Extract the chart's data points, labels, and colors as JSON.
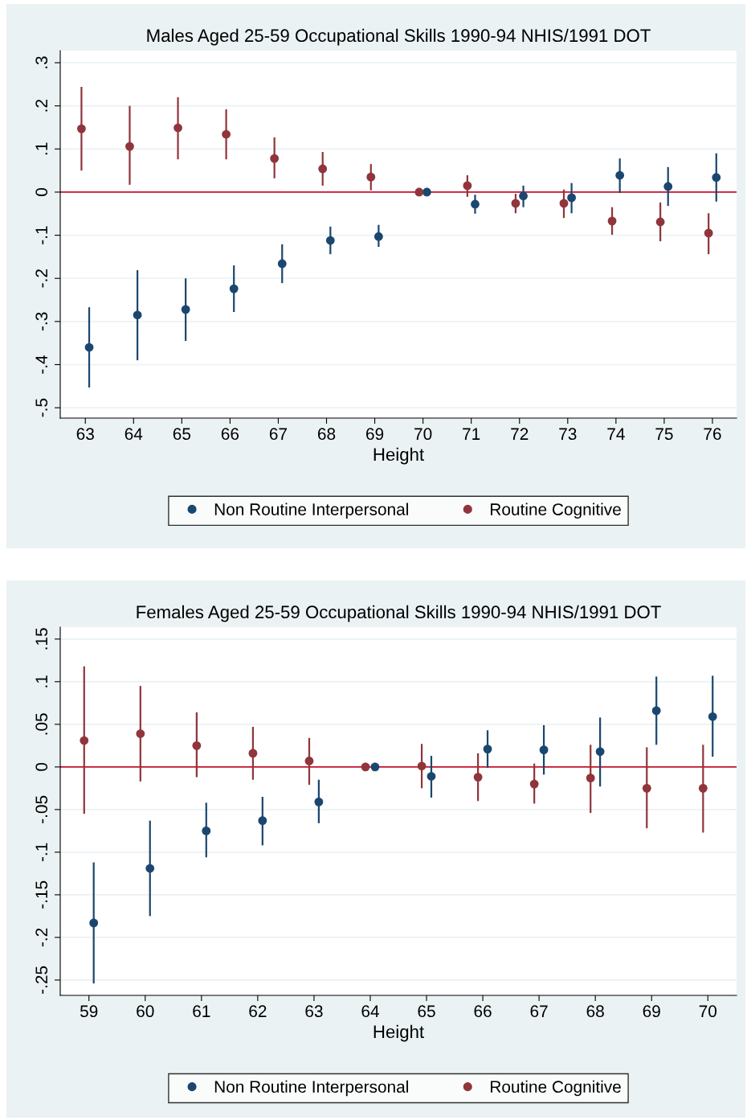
{
  "chart_data": [
    {
      "type": "scatter",
      "title": "Males Aged 25-59 Occupational Skills 1990-94 NHIS/1991 DOT",
      "xlabel": "Height",
      "xlim": [
        62.48,
        76.5
      ],
      "xticks": [
        63,
        64,
        65,
        66,
        67,
        68,
        69,
        70,
        71,
        72,
        73,
        74,
        75,
        76
      ],
      "ylim": [
        -0.524,
        0.328
      ],
      "yticks": [
        {
          "value": -0.5,
          "label": "-.5"
        },
        {
          "value": -0.4,
          "label": "-.4"
        },
        {
          "value": -0.3,
          "label": "-.3"
        },
        {
          "value": -0.2,
          "label": "-.2"
        },
        {
          "value": -0.1,
          "label": "-.1"
        },
        {
          "value": 0,
          "label": "0"
        },
        {
          "value": 0.1,
          "label": ".1"
        },
        {
          "value": 0.2,
          "label": ".2"
        },
        {
          "value": 0.3,
          "label": ".3"
        }
      ],
      "grid": "y",
      "legend": "bottom",
      "marker": "circle",
      "ref_lines": [
        {
          "axis": "y",
          "value": 0,
          "color": "#c8102e"
        }
      ],
      "series": [
        {
          "name": "Non Routine Interpersonal",
          "color": "#1a476f",
          "x": [
            63.08,
            64.08,
            65.08,
            66.08,
            67.08,
            68.08,
            69.08,
            70.08,
            71.08,
            72.08,
            73.08,
            74.08,
            75.08,
            76.08
          ],
          "values": [
            -0.36,
            -0.285,
            -0.272,
            -0.224,
            -0.166,
            -0.112,
            -0.103,
            0,
            -0.028,
            -0.009,
            -0.013,
            0.039,
            0.013,
            0.034
          ],
          "errors": [
            [
              -0.453,
              -0.267
            ],
            [
              -0.39,
              -0.181
            ],
            [
              -0.345,
              -0.2
            ],
            [
              -0.278,
              -0.17
            ],
            [
              -0.211,
              -0.121
            ],
            [
              -0.144,
              -0.08
            ],
            [
              -0.127,
              -0.076
            ],
            null,
            [
              -0.05,
              -0.006
            ],
            [
              -0.035,
              0.015
            ],
            [
              -0.049,
              0.021
            ],
            [
              -0.002,
              0.078
            ],
            [
              -0.032,
              0.058
            ],
            [
              -0.022,
              0.09
            ]
          ]
        },
        {
          "name": "Routine Cognitive",
          "color": "#90353b",
          "x": [
            62.92,
            63.92,
            64.92,
            65.92,
            66.92,
            67.92,
            68.92,
            69.92,
            70.92,
            71.92,
            72.92,
            73.92,
            74.92,
            75.92
          ],
          "values": [
            0.147,
            0.106,
            0.149,
            0.134,
            0.078,
            0.054,
            0.035,
            0,
            0.015,
            -0.026,
            -0.026,
            -0.067,
            -0.069,
            -0.095
          ],
          "errors": [
            [
              0.05,
              0.244
            ],
            [
              0.017,
              0.2
            ],
            [
              0.076,
              0.22
            ],
            [
              0.076,
              0.192
            ],
            [
              0.032,
              0.127
            ],
            [
              0.015,
              0.093
            ],
            [
              0.004,
              0.065
            ],
            null,
            [
              -0.011,
              0.039
            ],
            [
              -0.049,
              -0.004
            ],
            [
              -0.06,
              0.006
            ],
            [
              -0.099,
              -0.035
            ],
            [
              -0.114,
              -0.024
            ],
            [
              -0.144,
              -0.049
            ]
          ]
        }
      ]
    },
    {
      "type": "scatter",
      "title": "Females Aged 25-59 Occupational Skills 1990-94 NHIS/1991 DOT",
      "xlabel": "Height",
      "xlim": [
        58.49,
        70.51
      ],
      "xticks": [
        59,
        60,
        61,
        62,
        63,
        64,
        65,
        66,
        67,
        68,
        69,
        70
      ],
      "ylim": [
        -0.268,
        0.164
      ],
      "yticks": [
        {
          "value": -0.25,
          "label": "-.25"
        },
        {
          "value": -0.2,
          "label": "-.2"
        },
        {
          "value": -0.15,
          "label": "-.15"
        },
        {
          "value": -0.1,
          "label": "-.1"
        },
        {
          "value": -0.05,
          "label": "-.05"
        },
        {
          "value": 0,
          "label": "0"
        },
        {
          "value": 0.05,
          "label": ".05"
        },
        {
          "value": 0.1,
          "label": ".1"
        },
        {
          "value": 0.15,
          "label": ".15"
        }
      ],
      "grid": "y",
      "legend": "bottom",
      "marker": "circle",
      "ref_lines": [
        {
          "axis": "y",
          "value": 0,
          "color": "#c8102e"
        }
      ],
      "series": [
        {
          "name": "Non Routine Interpersonal",
          "color": "#1a476f",
          "x": [
            59.085,
            60.085,
            61.085,
            62.085,
            63.085,
            64.085,
            65.085,
            66.085,
            67.085,
            68.085,
            69.085,
            70.085
          ],
          "values": [
            -0.183,
            -0.119,
            -0.075,
            -0.063,
            -0.041,
            0,
            -0.011,
            0.021,
            0.02,
            0.018,
            0.066,
            0.059
          ],
          "errors": [
            [
              -0.254,
              -0.112
            ],
            [
              -0.175,
              -0.063
            ],
            [
              -0.106,
              -0.042
            ],
            [
              -0.092,
              -0.035
            ],
            [
              -0.066,
              -0.015
            ],
            null,
            [
              -0.036,
              0.013
            ],
            [
              -0.001,
              0.043
            ],
            [
              -0.009,
              0.049
            ],
            [
              -0.023,
              0.058
            ],
            [
              0.026,
              0.106
            ],
            [
              0.012,
              0.107
            ]
          ]
        },
        {
          "name": "Routine Cognitive",
          "color": "#90353b",
          "x": [
            58.915,
            59.915,
            60.915,
            61.915,
            62.915,
            63.915,
            64.915,
            65.915,
            66.915,
            67.915,
            68.915,
            69.915
          ],
          "values": [
            0.031,
            0.039,
            0.025,
            0.016,
            0.007,
            0,
            0.001,
            -0.012,
            -0.02,
            -0.013,
            -0.025,
            -0.025
          ],
          "errors": [
            [
              -0.055,
              0.118
            ],
            [
              -0.017,
              0.095
            ],
            [
              -0.012,
              0.064
            ],
            [
              -0.015,
              0.047
            ],
            [
              -0.021,
              0.034
            ],
            null,
            [
              -0.025,
              0.027
            ],
            [
              -0.04,
              0.016
            ],
            [
              -0.043,
              0.004
            ],
            [
              -0.054,
              0.026
            ],
            [
              -0.072,
              0.023
            ],
            [
              -0.077,
              0.026
            ]
          ]
        }
      ]
    }
  ]
}
